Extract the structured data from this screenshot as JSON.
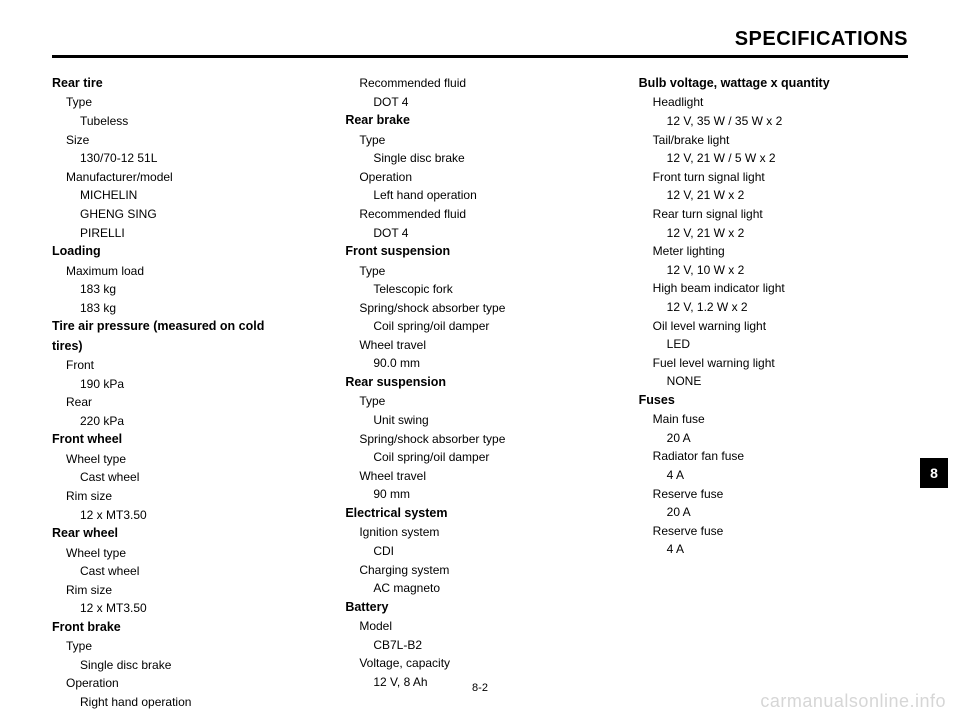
{
  "header": {
    "title": "SPECIFICATIONS"
  },
  "page_number": "8-2",
  "tab": "8",
  "watermark": "carmanualsonline.info",
  "col1": {
    "rear_tire": {
      "title": "Rear tire",
      "type_label": "Type",
      "type_value": "Tubeless",
      "size_label": "Size",
      "size_value": "130/70-12 51L",
      "mfr_label": "Manufacturer/model",
      "mfr1": "MICHELIN",
      "mfr2": "GHENG SING",
      "mfr3": "PIRELLI"
    },
    "loading": {
      "title": "Loading",
      "max_label": "Maximum load",
      "max1": "183 kg",
      "max2": "183 kg"
    },
    "tire_pressure": {
      "title1": "Tire air pressure (measured on cold",
      "title2": "tires)",
      "front_label": "Front",
      "front_value": "190 kPa",
      "rear_label": "Rear",
      "rear_value": "220 kPa"
    },
    "front_wheel": {
      "title": "Front wheel",
      "type_label": "Wheel type",
      "type_value": "Cast wheel",
      "rim_label": "Rim size",
      "rim_value": "12 x MT3.50"
    },
    "rear_wheel": {
      "title": "Rear wheel",
      "type_label": "Wheel type",
      "type_value": "Cast wheel",
      "rim_label": "Rim size",
      "rim_value": "12 x MT3.50"
    },
    "front_brake": {
      "title": "Front brake",
      "type_label": "Type",
      "type_value": "Single disc brake",
      "op_label": "Operation",
      "op_value": "Right hand operation"
    }
  },
  "col2": {
    "front_brake_cont": {
      "fluid_label": "Recommended fluid",
      "fluid_value": "DOT 4"
    },
    "rear_brake": {
      "title": "Rear brake",
      "type_label": "Type",
      "type_value": "Single disc brake",
      "op_label": "Operation",
      "op_value": "Left hand operation",
      "fluid_label": "Recommended fluid",
      "fluid_value": "DOT 4"
    },
    "front_susp": {
      "title": "Front suspension",
      "type_label": "Type",
      "type_value": "Telescopic fork",
      "spring_label": "Spring/shock absorber type",
      "spring_value": "Coil spring/oil damper",
      "travel_label": "Wheel travel",
      "travel_value": "90.0 mm"
    },
    "rear_susp": {
      "title": "Rear suspension",
      "type_label": "Type",
      "type_value": "Unit swing",
      "spring_label": "Spring/shock absorber type",
      "spring_value": "Coil spring/oil damper",
      "travel_label": "Wheel travel",
      "travel_value": "90 mm"
    },
    "electrical": {
      "title": "Electrical system",
      "ign_label": "Ignition system",
      "ign_value": "CDI",
      "chg_label": "Charging system",
      "chg_value": "AC magneto"
    },
    "battery": {
      "title": "Battery",
      "model_label": "Model",
      "model_value": "CB7L-B2",
      "volt_label": "Voltage, capacity",
      "volt_value": "12 V, 8 Ah"
    }
  },
  "col3": {
    "bulbs": {
      "title": "Bulb voltage, wattage x quantity",
      "headlight_label": "Headlight",
      "headlight_value": "12 V, 35 W / 35 W x 2",
      "tail_label": "Tail/brake light",
      "tail_value": "12 V, 21 W / 5 W x 2",
      "fturn_label": "Front turn signal light",
      "fturn_value": "12 V, 21 W x 2",
      "rturn_label": "Rear turn signal light",
      "rturn_value": "12 V, 21 W x 2",
      "meter_label": "Meter lighting",
      "meter_value": "12 V, 10 W x 2",
      "highbeam_label": "High beam indicator light",
      "highbeam_value": "12 V, 1.2 W x 2",
      "oil_label": "Oil level warning light",
      "oil_value": "LED",
      "fuel_label": "Fuel level warning light",
      "fuel_value": "NONE"
    },
    "fuses": {
      "title": "Fuses",
      "main_label": "Main fuse",
      "main_value": "20 A",
      "rad_label": "Radiator fan fuse",
      "rad_value": "4 A",
      "res1_label": "Reserve fuse",
      "res1_value": "20 A",
      "res2_label": "Reserve fuse",
      "res2_value": "4 A"
    }
  }
}
